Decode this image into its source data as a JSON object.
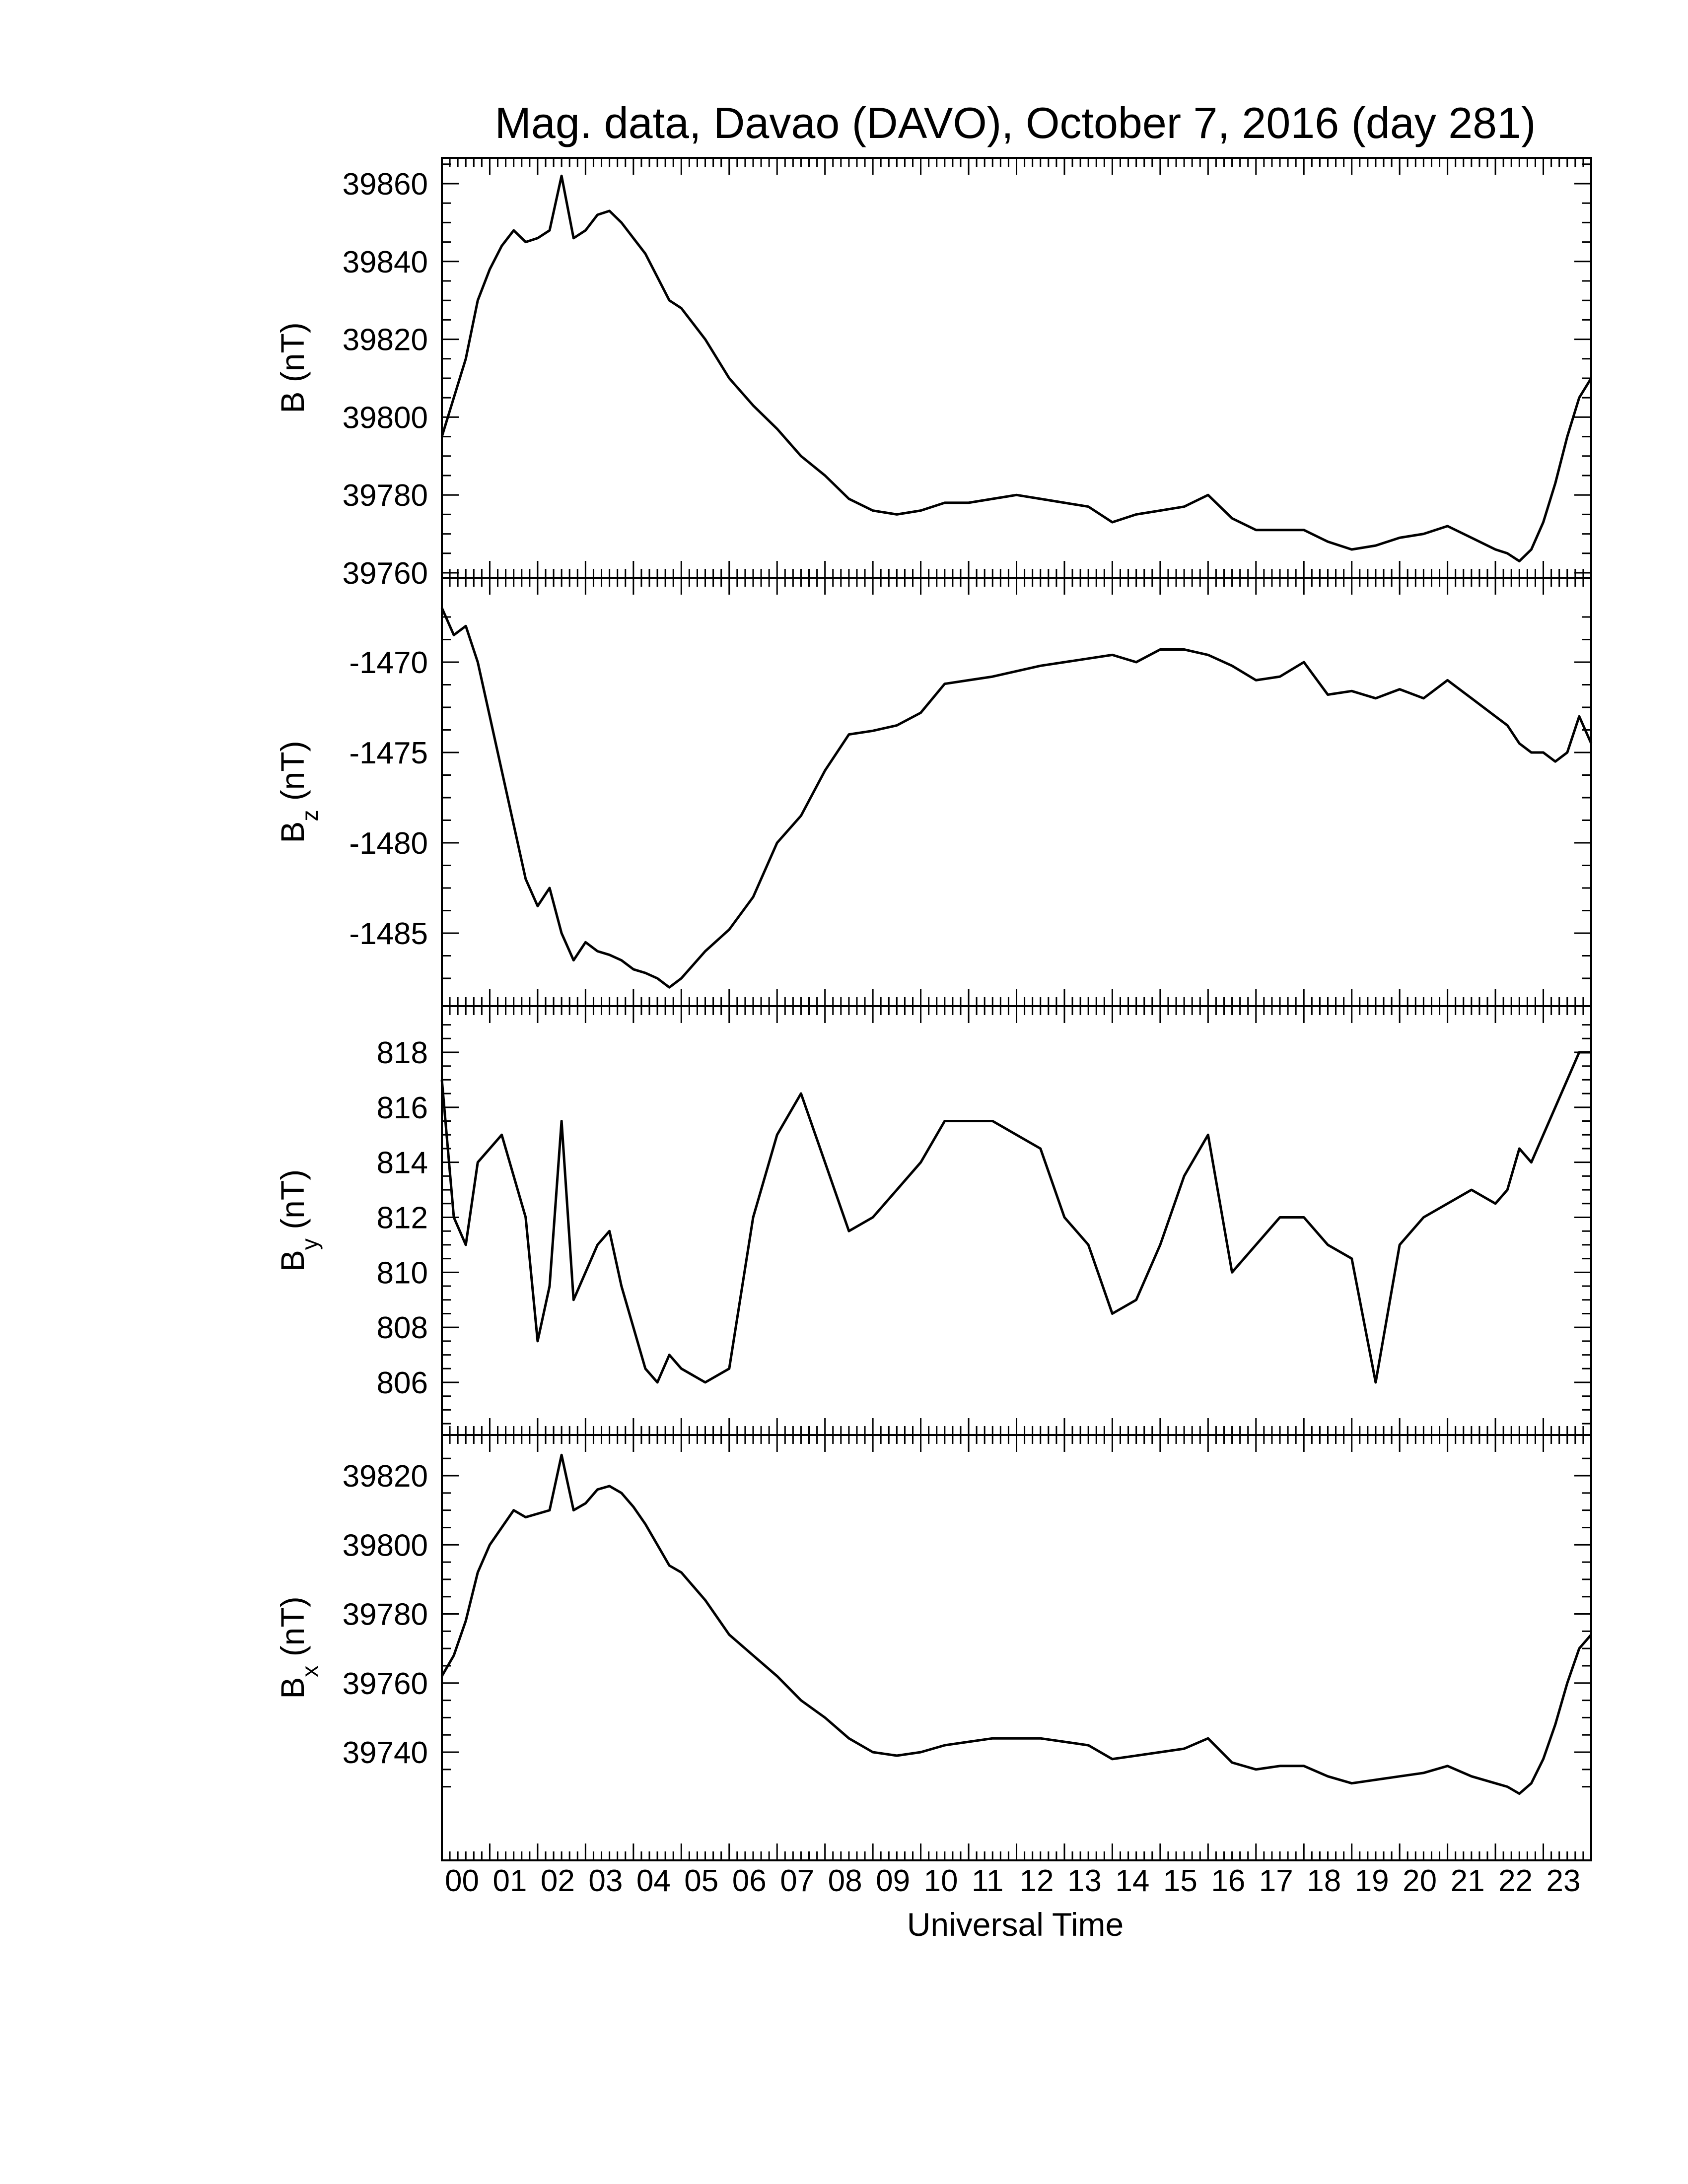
{
  "chart_data": {
    "type": "line",
    "title": "Mag. data, Davao (DAVO), October 7, 2016 (day 281)",
    "xlabel": "Universal Time",
    "x_unit": "hours UT",
    "xlim": [
      0,
      24
    ],
    "x_ticks": [
      "00",
      "01",
      "02",
      "03",
      "04",
      "05",
      "06",
      "07",
      "08",
      "09",
      "10",
      "11",
      "12",
      "13",
      "14",
      "15",
      "16",
      "17",
      "18",
      "19",
      "20",
      "21",
      "22",
      "23"
    ],
    "x": [
      0,
      0.25,
      0.5,
      0.75,
      1,
      1.25,
      1.5,
      1.75,
      2,
      2.25,
      2.5,
      2.75,
      3,
      3.25,
      3.5,
      3.75,
      4,
      4.25,
      4.5,
      4.75,
      5,
      5.5,
      6,
      6.5,
      7,
      7.5,
      8,
      8.5,
      9,
      9.5,
      10,
      10.5,
      11,
      11.5,
      12,
      12.5,
      13,
      13.5,
      14,
      14.5,
      15,
      15.5,
      16,
      16.5,
      17,
      17.5,
      18,
      18.5,
      19,
      19.5,
      20,
      20.5,
      21,
      21.5,
      22,
      22.25,
      22.5,
      22.75,
      23,
      23.25,
      23.5,
      23.75,
      24
    ],
    "panels": [
      {
        "ylabel": "B",
        "ylabel_sub": "",
        "unit": "(nT)",
        "ylim": [
          39758,
          39867
        ],
        "yticks": [
          39760,
          39780,
          39800,
          39820,
          39840,
          39860
        ],
        "values": [
          39795,
          39805,
          39815,
          39830,
          39838,
          39844,
          39848,
          39845,
          39846,
          39848,
          39862,
          39846,
          39848,
          39852,
          39853,
          39850,
          39846,
          39842,
          39836,
          39830,
          39828,
          39820,
          39810,
          39803,
          39797,
          39790,
          39785,
          39779,
          39776,
          39775,
          39776,
          39778,
          39778,
          39779,
          39780,
          39779,
          39778,
          39777,
          39773,
          39775,
          39776,
          39777,
          39780,
          39774,
          39771,
          39771,
          39771,
          39768,
          39766,
          39767,
          39769,
          39770,
          39772,
          39769,
          39766,
          39765,
          39763,
          39766,
          39773,
          39783,
          39795,
          39805,
          39810
        ]
      },
      {
        "ylabel": "B",
        "ylabel_sub": "z",
        "unit": "(nT)",
        "ylim": [
          -1488.3,
          -1466.5
        ],
        "yticks": [
          -1470,
          -1475,
          -1480,
          -1485
        ],
        "values": [
          -1467,
          -1468.5,
          -1468,
          -1470,
          -1473,
          -1476,
          -1479,
          -1482,
          -1483.5,
          -1482.5,
          -1485,
          -1486.5,
          -1485.5,
          -1486,
          -1486.2,
          -1486.5,
          -1487,
          -1487.2,
          -1487.5,
          -1488,
          -1487.5,
          -1486,
          -1484.8,
          -1483,
          -1480,
          -1478.5,
          -1476,
          -1474,
          -1473.8,
          -1473.5,
          -1472.8,
          -1471.2,
          -1471,
          -1470.8,
          -1470.5,
          -1470.2,
          -1470,
          -1469.8,
          -1469.6,
          -1470,
          -1469.3,
          -1469.3,
          -1469.6,
          -1470.2,
          -1471,
          -1470.8,
          -1470,
          -1471.8,
          -1471.6,
          -1472,
          -1471.5,
          -1472,
          -1471,
          -1472,
          -1473,
          -1473.5,
          -1474.5,
          -1475,
          -1475,
          -1475.5,
          -1475,
          -1473,
          -1474.5
        ]
      },
      {
        "ylabel": "B",
        "ylabel_sub": "y",
        "unit": "(nT)",
        "ylim": [
          804.5,
          819
        ],
        "yticks": [
          806,
          808,
          810,
          812,
          814,
          816,
          818
        ],
        "values": [
          817,
          812,
          811,
          814,
          814.5,
          815,
          813.5,
          812,
          807.5,
          809.5,
          815.5,
          809,
          810,
          811,
          811.5,
          809.5,
          808,
          806.5,
          806,
          807,
          806.5,
          806,
          806.5,
          812,
          815,
          816.5,
          814,
          811.5,
          812,
          813,
          814,
          815.5,
          815.5,
          815.5,
          815,
          814.5,
          812,
          811,
          808.5,
          809,
          811,
          813.5,
          815,
          810,
          811,
          812,
          812,
          811,
          810.5,
          806,
          811,
          812,
          812.5,
          813,
          812.5,
          813,
          814.5,
          814,
          815,
          816,
          817,
          818,
          818
        ]
      },
      {
        "ylabel": "B",
        "ylabel_sub": "x",
        "unit": "(nT)",
        "ylim": [
          39726,
          39828
        ],
        "yticks": [
          39740,
          39760,
          39780,
          39800,
          39820
        ],
        "values": [
          39762,
          39768,
          39778,
          39792,
          39800,
          39805,
          39810,
          39808,
          39809,
          39810,
          39826,
          39810,
          39812,
          39816,
          39817,
          39815,
          39811,
          39806,
          39800,
          39794,
          39792,
          39784,
          39774,
          39768,
          39762,
          39755,
          39750,
          39744,
          39740,
          39739,
          39740,
          39742,
          39743,
          39744,
          39744,
          39744,
          39743,
          39742,
          39738,
          39739,
          39740,
          39741,
          39744,
          39737,
          39735,
          39736,
          39736,
          39733,
          39731,
          39732,
          39733,
          39734,
          39736,
          39733,
          39731,
          39730,
          39728,
          39731,
          39738,
          39748,
          39760,
          39770,
          39774
        ]
      }
    ]
  }
}
